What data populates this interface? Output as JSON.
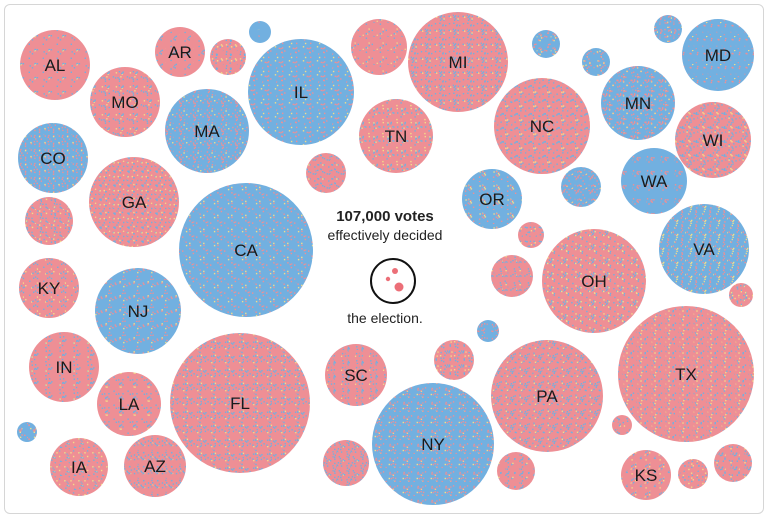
{
  "colors": {
    "red": "#ee8f95",
    "blue": "#72b0e0",
    "yellow": "#f3dc8a",
    "dot_red": "#ec6f78"
  },
  "center": {
    "headline": "107,000 votes",
    "subline": "effectively decided",
    "after": "the election."
  },
  "states": [
    {
      "label": "AL",
      "mix": 0.7
    },
    {
      "label": "AR",
      "mix": 0.7
    },
    {
      "label": "MO",
      "mix": 0.65
    },
    {
      "label": "IL",
      "mix": 0.35
    },
    {
      "label": "MI",
      "mix": 0.55
    },
    {
      "label": "MD",
      "mix": 0.3
    },
    {
      "label": "MN",
      "mix": 0.5
    },
    {
      "label": "MA",
      "mix": 0.3
    },
    {
      "label": "TN",
      "mix": 0.7
    },
    {
      "label": "NC",
      "mix": 0.55
    },
    {
      "label": "WI",
      "mix": 0.55
    },
    {
      "label": "CO",
      "mix": 0.45
    },
    {
      "label": "GA",
      "mix": 0.6
    },
    {
      "label": "WA",
      "mix": 0.35
    },
    {
      "label": "OR",
      "mix": 0.4
    },
    {
      "label": "CA",
      "mix": 0.3
    },
    {
      "label": "VA",
      "mix": 0.45
    },
    {
      "label": "OH",
      "mix": 0.6
    },
    {
      "label": "KY",
      "mix": 0.7
    },
    {
      "label": "NJ",
      "mix": 0.4
    },
    {
      "label": "IN",
      "mix": 0.65
    },
    {
      "label": "LA",
      "mix": 0.65
    },
    {
      "label": "FL",
      "mix": 0.55
    },
    {
      "label": "SC",
      "mix": 0.6
    },
    {
      "label": "PA",
      "mix": 0.55
    },
    {
      "label": "TX",
      "mix": 0.6
    },
    {
      "label": "NY",
      "mix": 0.35
    },
    {
      "label": "IA",
      "mix": 0.6
    },
    {
      "label": "AZ",
      "mix": 0.55
    },
    {
      "label": "KS",
      "mix": 0.65
    }
  ],
  "unlabeled_circles": [
    {
      "mix": 0.05
    },
    {
      "mix": 0.6
    },
    {
      "mix": 0.65
    },
    {
      "mix": 0.3
    },
    {
      "mix": 0.4
    },
    {
      "mix": 0.5
    },
    {
      "mix": 0.6
    },
    {
      "mix": 0.4
    },
    {
      "mix": 0.6
    },
    {
      "mix": 0.6
    },
    {
      "mix": 0.6
    },
    {
      "mix": 0.55
    },
    {
      "mix": 0.3
    },
    {
      "mix": 0.55
    },
    {
      "mix": 0.5
    },
    {
      "mix": 0.55
    },
    {
      "mix": 0.55
    },
    {
      "mix": 0.6
    },
    {
      "mix": 0.55
    },
    {
      "mix": 0.6
    },
    {
      "mix": 0.55
    },
    {
      "mix": 0.6
    }
  ]
}
